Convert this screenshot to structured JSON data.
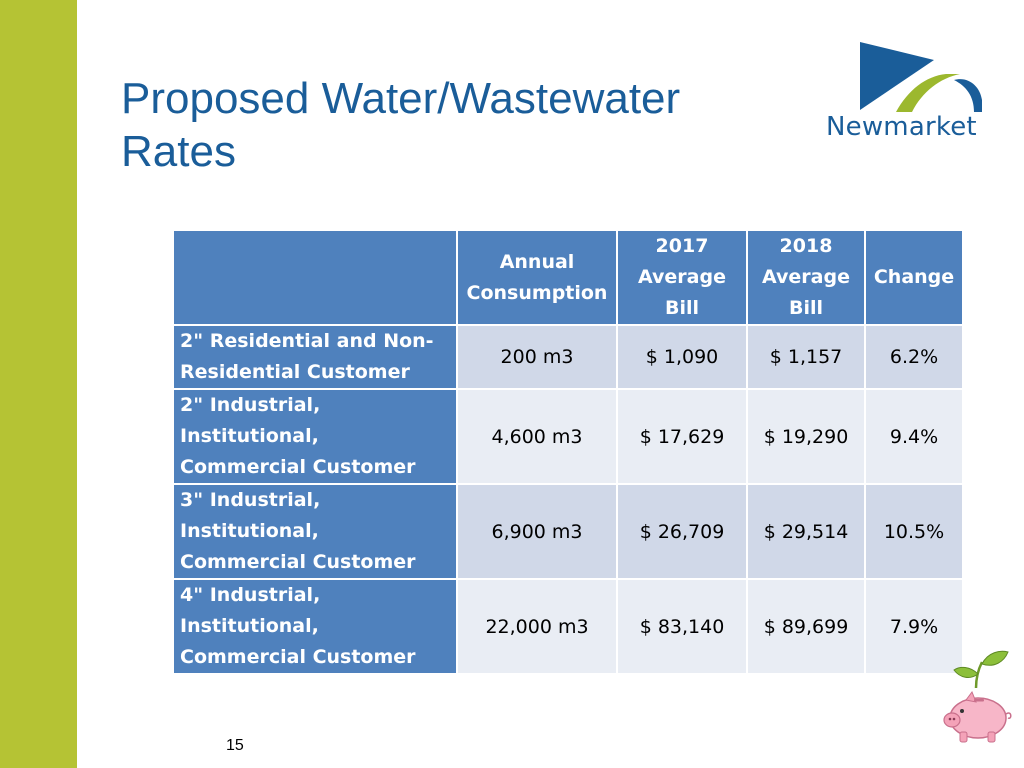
{
  "slide": {
    "title_line1": "Proposed Water/Wastewater",
    "title_line2": "Rates",
    "page_number": "15",
    "logo_text": "Newmarket"
  },
  "table": {
    "headers": [
      "",
      "Annual Consumption",
      "2017 Average Bill",
      "2018 Average Bill",
      "Change"
    ],
    "rows": [
      {
        "customer": "2\" Residential and Non-Residential Customer",
        "consumption": "200 m3",
        "bill_2017": "$ 1,090",
        "bill_2018": "$ 1,157",
        "change": "6.2%"
      },
      {
        "customer": "2\" Industrial, Institutional, Commercial Customer",
        "consumption": "4,600 m3",
        "bill_2017": "$ 17,629",
        "bill_2018": "$ 19,290",
        "change": "9.4%"
      },
      {
        "customer": "3\" Industrial, Institutional, Commercial Customer",
        "consumption": "6,900 m3",
        "bill_2017": "$ 26,709",
        "bill_2018": "$ 29,514",
        "change": "10.5%"
      },
      {
        "customer": "4\" Industrial, Institutional, Commercial Customer",
        "consumption": "22,000 m3",
        "bill_2017": "$ 83,140",
        "bill_2018": "$ 89,699",
        "change": "7.9%"
      }
    ]
  },
  "colors": {
    "accent_bar": "#b5c334",
    "title": "#1a5d99",
    "header_fill": "#4f81bd",
    "row_fill_odd": "#d0d8e8",
    "row_fill_even": "#e9edf4"
  },
  "icons": [
    "newmarket-logo-icon",
    "piggy-bank-sprout-icon"
  ]
}
